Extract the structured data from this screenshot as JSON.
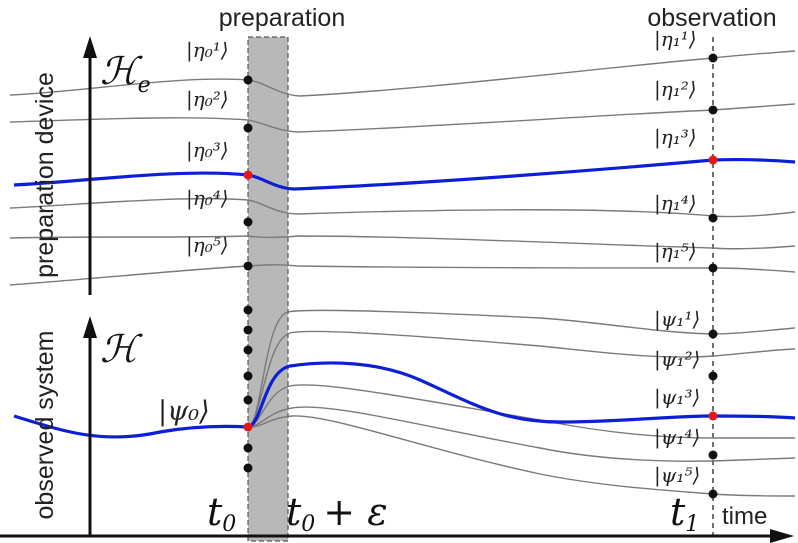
{
  "labels": {
    "preparation": "preparation",
    "observation": "observation",
    "preparation_device": "preparation device",
    "observed_system": "observed system",
    "time": "time",
    "h_e": "ℋ",
    "h_e_sub": "e",
    "h": "ℋ",
    "t0": "t",
    "t0_sub": "0",
    "t0eps": "t",
    "t0eps_sub": "0",
    "t0eps_suffix": "+ ε",
    "t1": "t",
    "t1_sub": "1",
    "psi0": "|ψ₀⟩"
  },
  "kets_left": [
    "|η₀¹⟩",
    "|η₀²⟩",
    "|η₀³⟩",
    "|η₀⁴⟩",
    "|η₀⁵⟩"
  ],
  "kets_right_eta": [
    "|η₁¹⟩",
    "|η₁²⟩",
    "|η₁³⟩",
    "|η₁⁴⟩",
    "|η₁⁵⟩"
  ],
  "kets_right_psi": [
    "|ψ₁¹⟩",
    "|ψ₁²⟩",
    "|ψ₁³⟩",
    "|ψ₁⁴⟩",
    "|ψ₁⁵⟩"
  ],
  "colors": {
    "highlight_curve": "#0d1fd6",
    "thin_curve": "#7a7a7a",
    "band": "#b8b8b8",
    "marker_red": "#e0191b",
    "dot": "#111111"
  }
}
